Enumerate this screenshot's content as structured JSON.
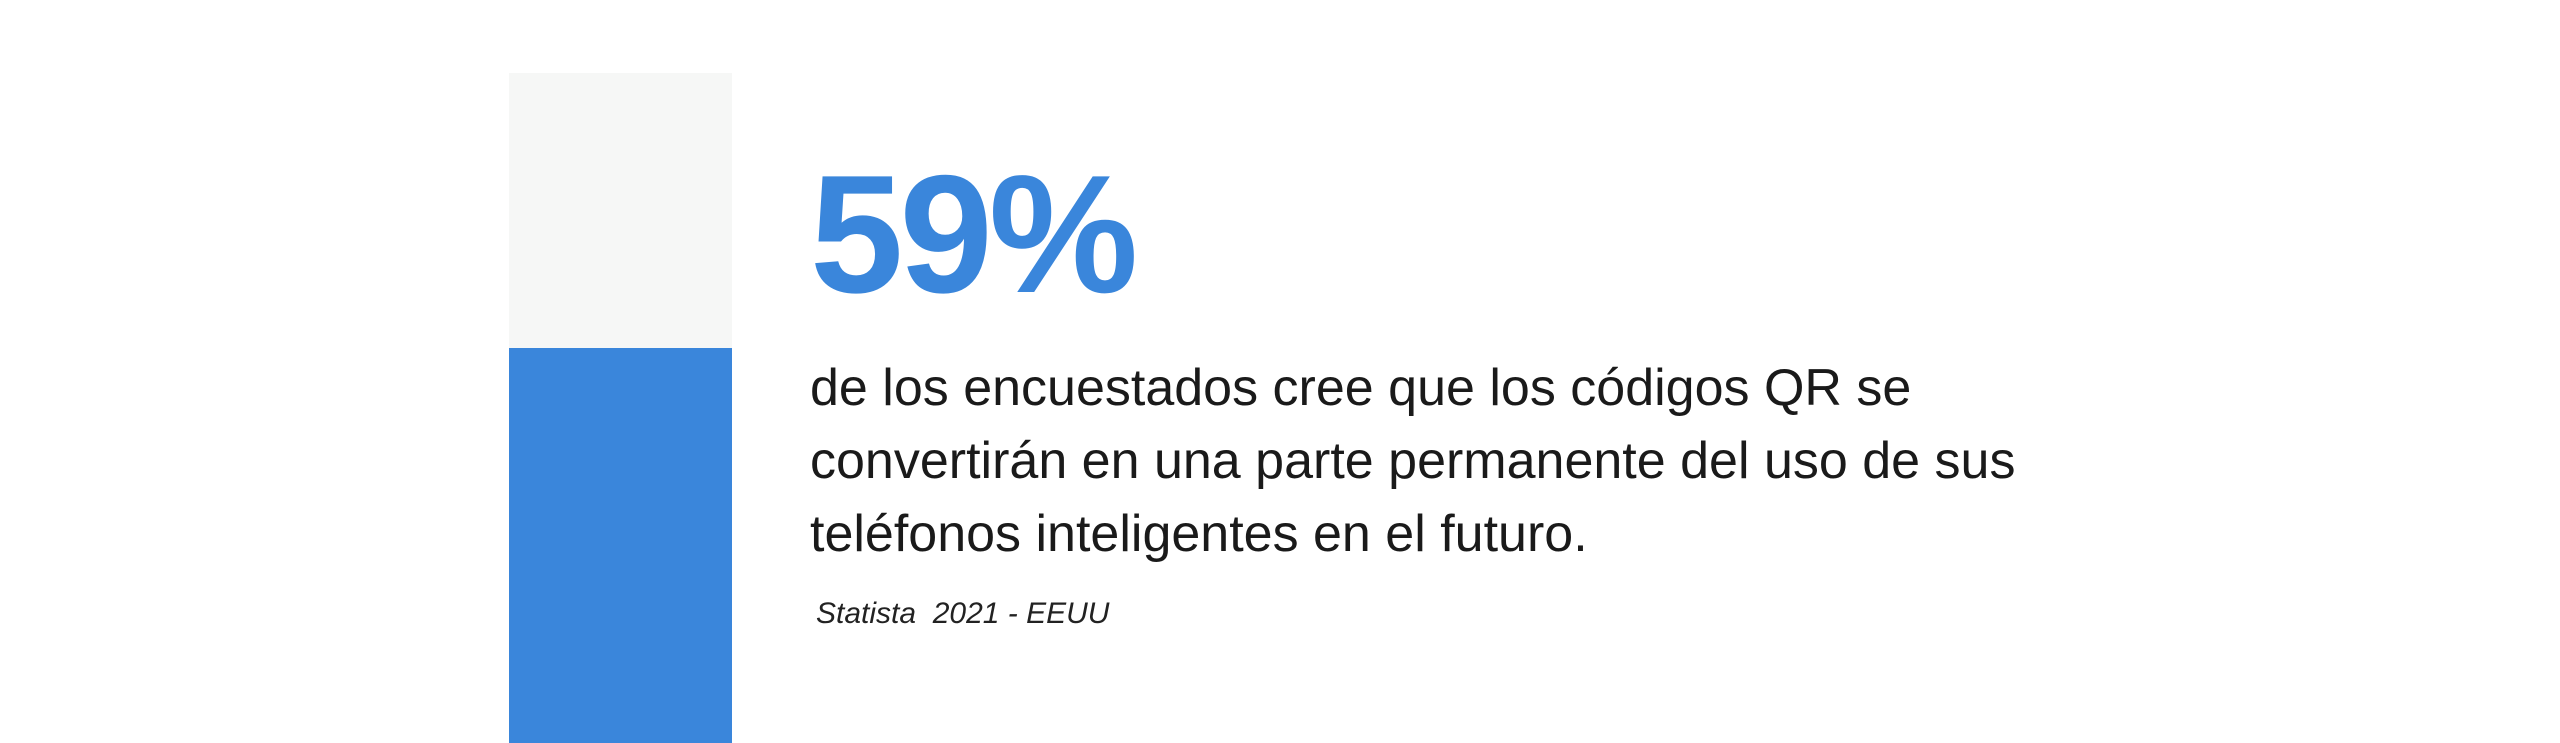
{
  "stat": {
    "value_text": "59%",
    "fill_fraction": 0.59,
    "accent_color": "#3a86db",
    "track_color": "#f6f7f6"
  },
  "statement": "de los encuestados cree que los códigos QR se convertirán en una parte permanente del uso de sus teléfonos inteligentes en el futuro.",
  "source": "Statista  2021 - EEUU"
}
